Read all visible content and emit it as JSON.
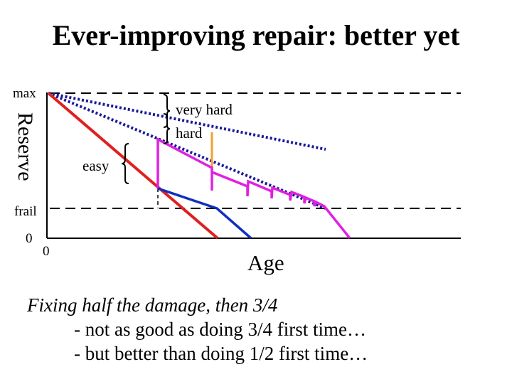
{
  "title": "Ever-improving repair: better yet",
  "axes": {
    "y_title": "Reserve",
    "x_title": "Age",
    "y_max_label": "max",
    "y_frail_label": "frail",
    "y_zero_label": "0",
    "x_zero_label": "0"
  },
  "annotations": {
    "very_hard": "very hard",
    "hard": "hard",
    "easy": "easy"
  },
  "caption": {
    "line1": "Fixing half the damage, then 3/4",
    "line2": "- not as good as doing 3/4 first time…",
    "line3": "- but better than doing 1/2 first time…"
  },
  "colors": {
    "red": "#e02020",
    "magenta": "#e020e0",
    "blue": "#1030c0",
    "orange": "#f0a030",
    "navy_dotted": "#1a1a9a",
    "dashed": "#000000"
  }
}
